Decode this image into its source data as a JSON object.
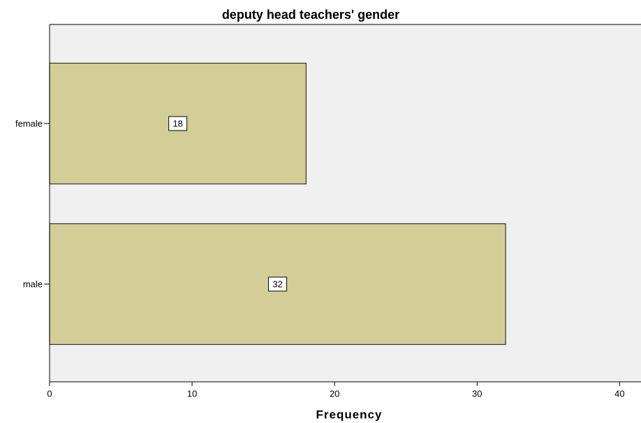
{
  "chart_data": {
    "type": "bar",
    "orientation": "horizontal",
    "title": "deputy head teachers' gender",
    "categories": [
      "female",
      "male"
    ],
    "values": [
      18,
      32
    ],
    "color": "#d3ce98",
    "xlabel": "Frequency",
    "xlim": [
      0,
      41.5
    ],
    "xticks": [
      0,
      10,
      20,
      30,
      40
    ],
    "grid": false
  }
}
